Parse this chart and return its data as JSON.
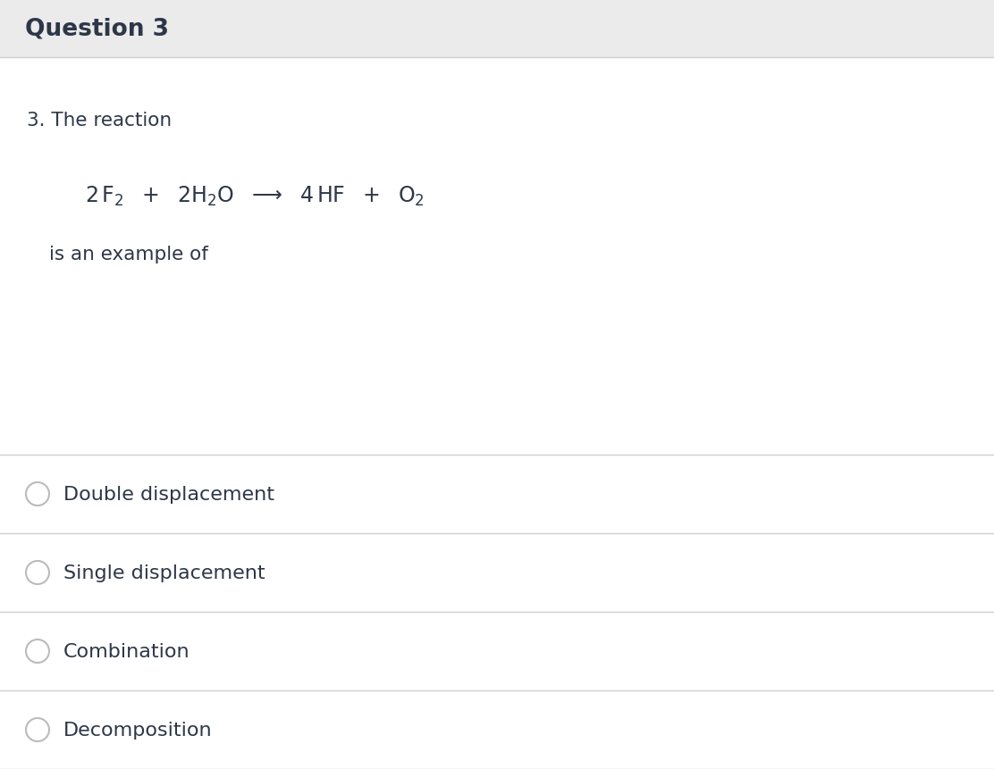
{
  "title": "Question 3",
  "title_bg_color": "#ebebeb",
  "main_bg_color": "#ffffff",
  "title_text_color": "#2d3748",
  "body_text_color": "#2d3748",
  "line_color": "#d0d0d0",
  "question_text": "3. The reaction",
  "equation_note": "is an example of",
  "options": [
    "Double displacement",
    "Single displacement",
    "Combination",
    "Decomposition"
  ],
  "title_fontsize": 19,
  "body_fontsize": 15.5,
  "eq_fontsize": 17,
  "option_fontsize": 16,
  "radio_color": "#bbbbbb",
  "figwidth": 11.12,
  "figheight": 8.62,
  "dpi": 100
}
